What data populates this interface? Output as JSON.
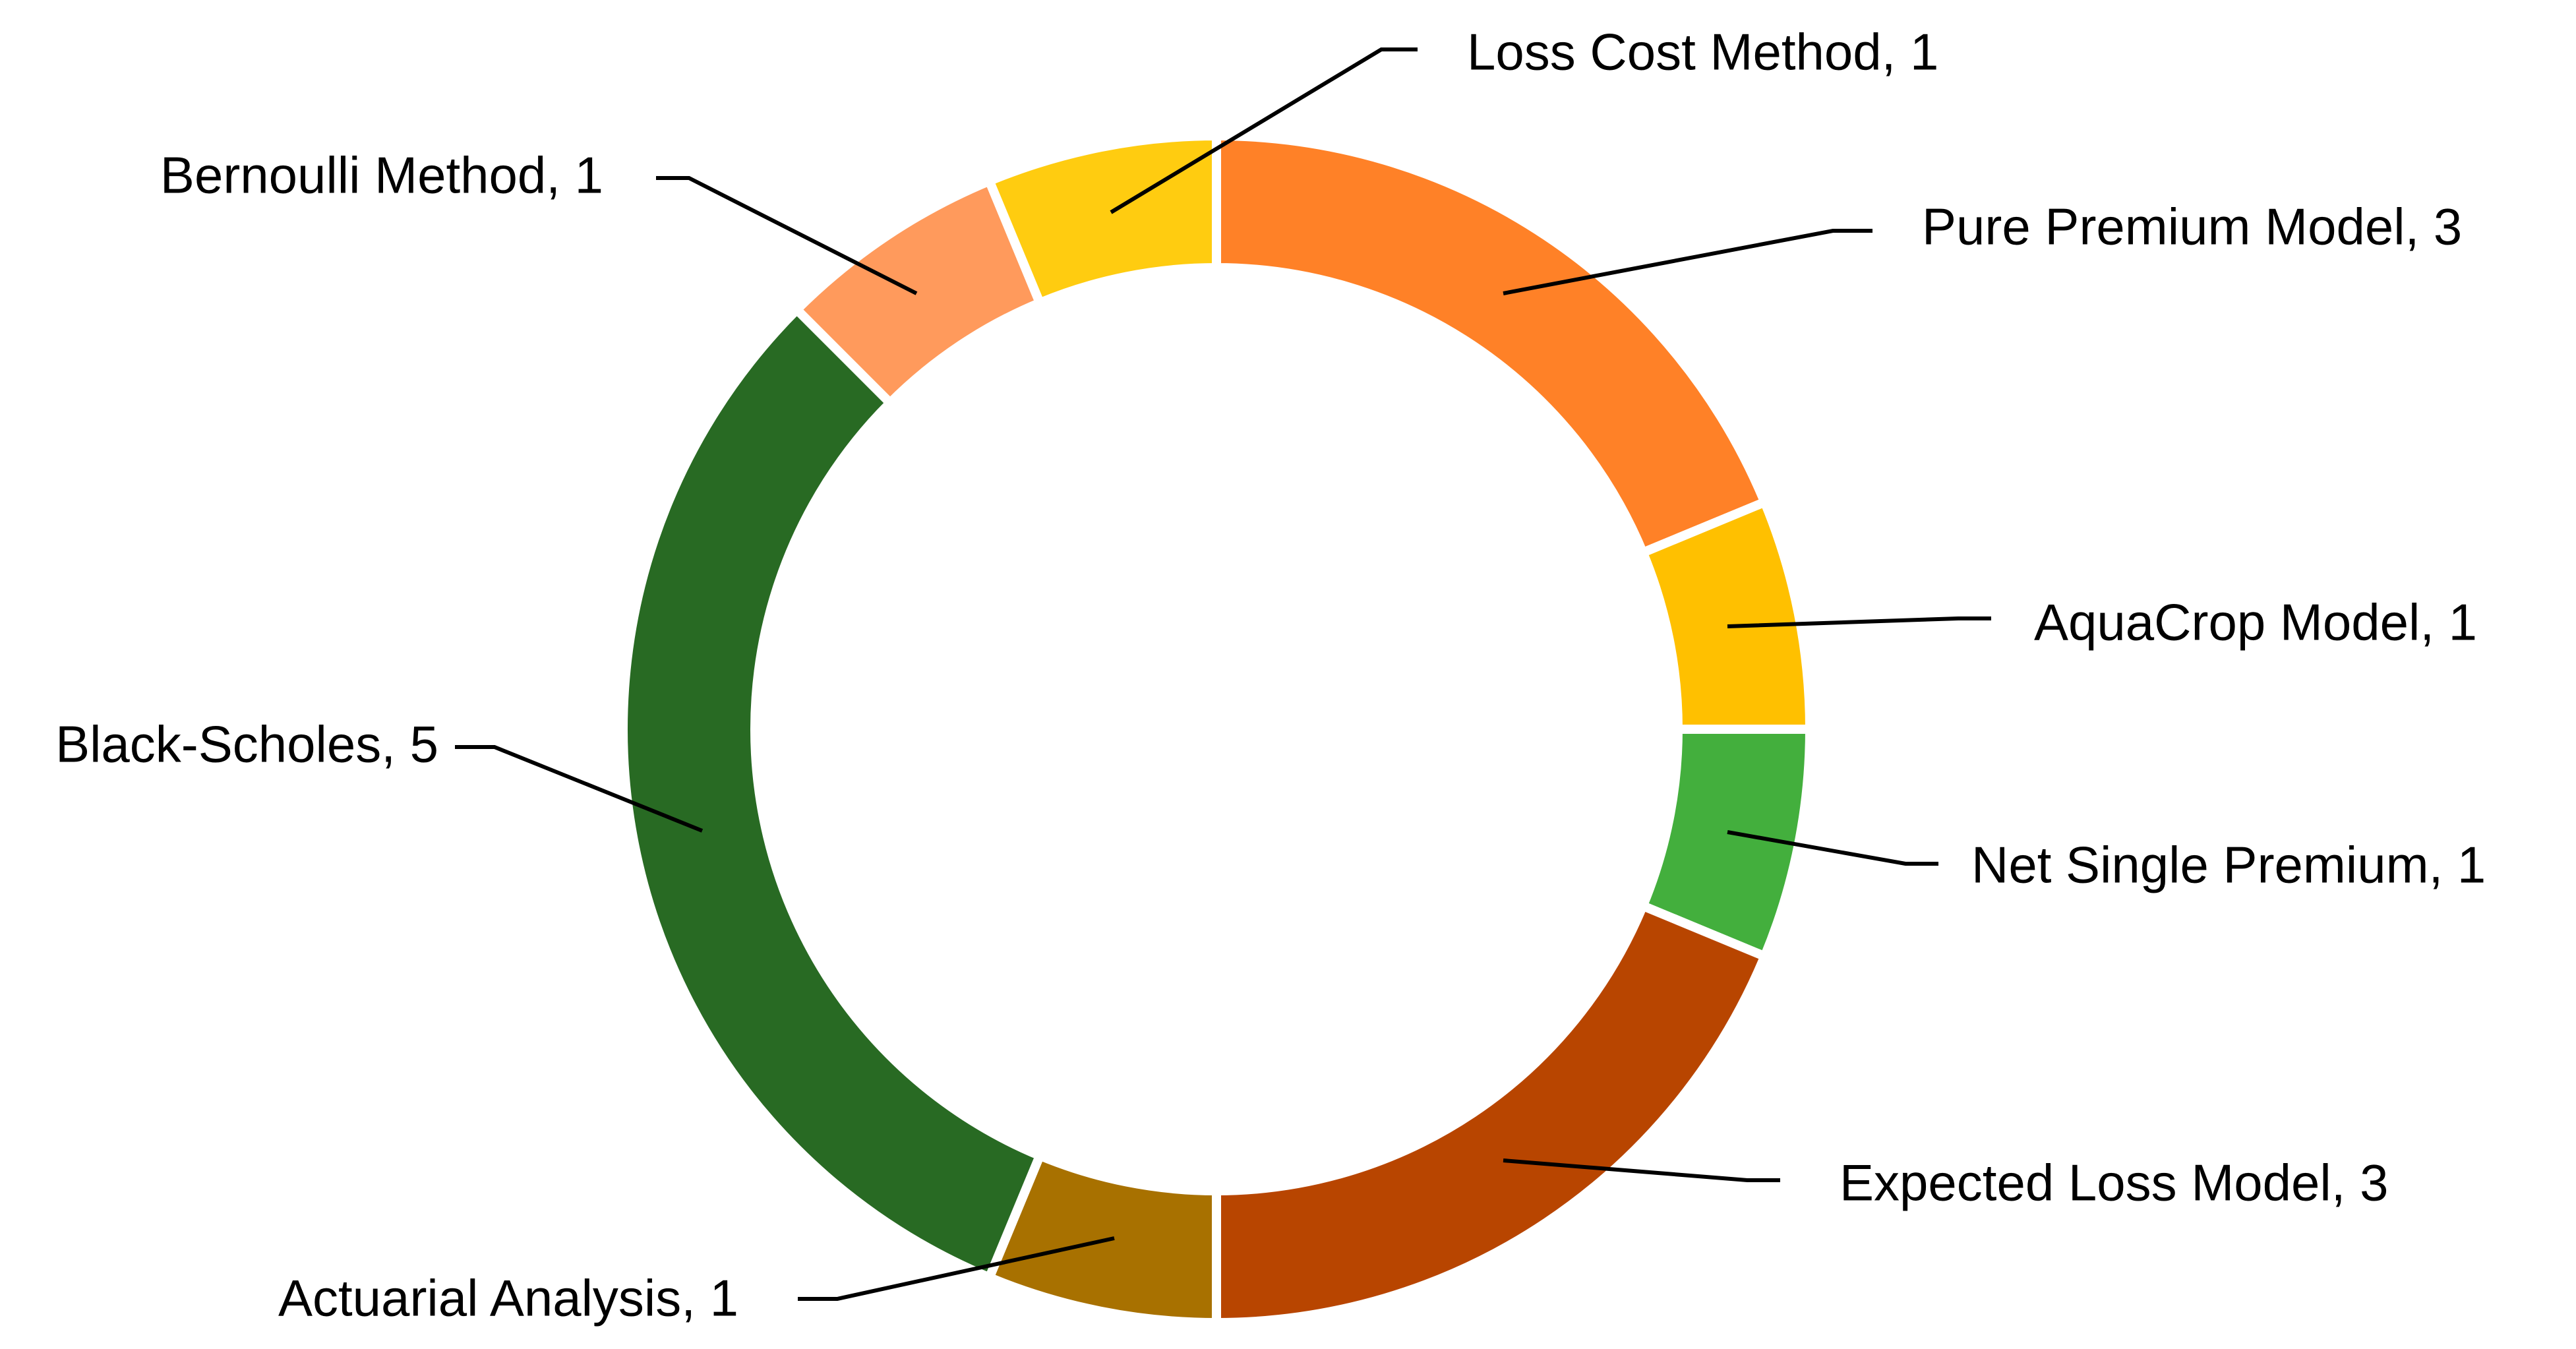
{
  "chart_data": {
    "type": "donut",
    "title": "",
    "legend": "none",
    "data_labels": "category, value",
    "slices": [
      {
        "label": "Pure Premium Model, 3",
        "category": "Pure Premium Model",
        "value": 3,
        "color": "#FF8127"
      },
      {
        "label": "AquaCrop Model, 1",
        "category": "AquaCrop Model",
        "value": 1,
        "color": "#FFC000"
      },
      {
        "label": "Net Single Premium, 1",
        "category": "Net Single Premium",
        "value": 1,
        "color": "#43AF3D"
      },
      {
        "label": "Expected Loss Model, 3",
        "category": "Expected Loss Model",
        "value": 3,
        "color": "#B84500"
      },
      {
        "label": "Actuarial Analysis, 1",
        "category": "Actuarial Analysis",
        "value": 1,
        "color": "#A87100"
      },
      {
        "label": "Black-Scholes, 5",
        "category": "Black-Scholes",
        "value": 5,
        "color": "#286A23"
      },
      {
        "label": "Bernoulli Method, 1",
        "category": "Bernoulli Method",
        "value": 1,
        "color": "#FF9A5C"
      },
      {
        "label": "Loss Cost Method, 1",
        "category": "Loss Cost Method",
        "value": 1,
        "color": "#FFCC10"
      }
    ]
  }
}
